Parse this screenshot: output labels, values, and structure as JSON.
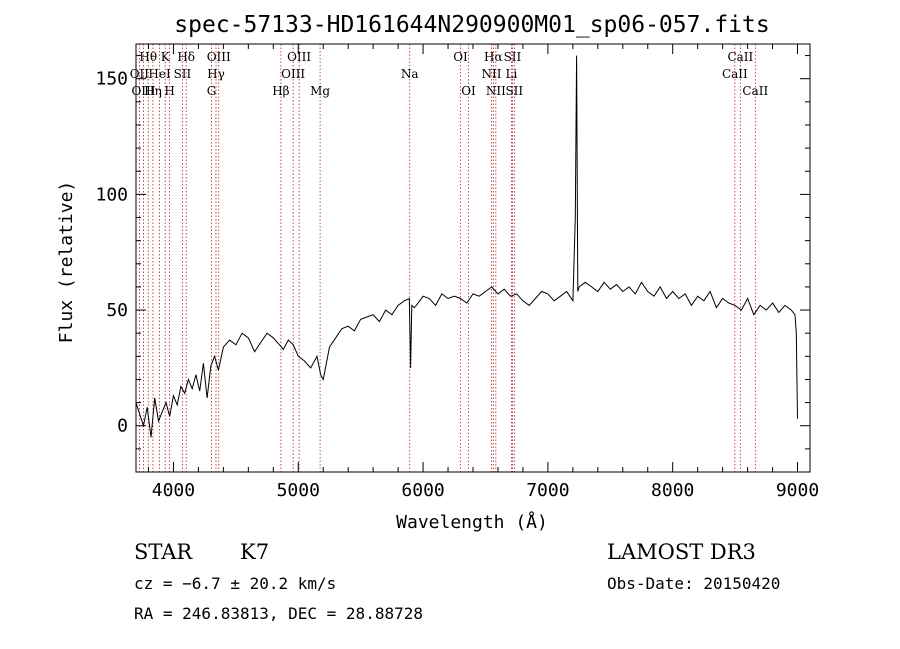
{
  "chart_data": {
    "type": "line",
    "title": "spec-57133-HD161644N290900M01_sp06-057.fits",
    "xlabel": "Wavelength (Å)",
    "ylabel": "Flux (relative)",
    "xlim": [
      3700,
      9100
    ],
    "ylim": [
      -20,
      165
    ],
    "xticks": [
      4000,
      5000,
      6000,
      7000,
      8000,
      9000
    ],
    "yticks": [
      0,
      50,
      100,
      150
    ],
    "grid": false,
    "series": [
      {
        "name": "spectrum",
        "color": "#000000",
        "x": [
          3700,
          3730,
          3760,
          3790,
          3820,
          3850,
          3880,
          3910,
          3940,
          3970,
          4000,
          4030,
          4060,
          4090,
          4120,
          4150,
          4180,
          4210,
          4240,
          4270,
          4300,
          4330,
          4360,
          4400,
          4450,
          4500,
          4550,
          4600,
          4650,
          4700,
          4750,
          4800,
          4850,
          4880,
          4920,
          4960,
          5000,
          5050,
          5100,
          5150,
          5180,
          5200,
          5250,
          5300,
          5350,
          5400,
          5450,
          5500,
          5550,
          5600,
          5650,
          5700,
          5750,
          5800,
          5850,
          5890,
          5900,
          5910,
          5930,
          5960,
          6000,
          6050,
          6100,
          6150,
          6200,
          6250,
          6300,
          6350,
          6400,
          6450,
          6500,
          6550,
          6600,
          6650,
          6700,
          6750,
          6800,
          6850,
          6900,
          6950,
          7000,
          7050,
          7100,
          7150,
          7200,
          7220,
          7230,
          7240,
          7250,
          7300,
          7350,
          7400,
          7450,
          7500,
          7550,
          7600,
          7650,
          7700,
          7750,
          7800,
          7850,
          7900,
          7950,
          8000,
          8050,
          8100,
          8150,
          8200,
          8250,
          8300,
          8350,
          8400,
          8450,
          8500,
          8550,
          8600,
          8650,
          8700,
          8750,
          8800,
          8850,
          8900,
          8950,
          8980,
          8990,
          9000
        ],
        "values": [
          10,
          5,
          0,
          8,
          -5,
          12,
          2,
          6,
          10,
          4,
          13,
          9,
          17,
          14,
          20,
          16,
          22,
          15,
          27,
          12,
          26,
          30,
          24,
          34,
          37,
          35,
          40,
          38,
          32,
          36,
          40,
          38,
          35,
          33,
          37,
          35,
          30,
          28,
          25,
          30,
          22,
          20,
          34,
          38,
          42,
          43,
          41,
          46,
          47,
          48,
          45,
          50,
          48,
          52,
          54,
          55,
          25,
          52,
          51,
          53,
          56,
          55,
          52,
          57,
          55,
          56,
          55,
          53,
          57,
          56,
          58,
          60,
          57,
          59,
          56,
          57,
          54,
          52,
          55,
          58,
          57,
          54,
          56,
          58,
          54,
          90,
          160,
          58,
          60,
          62,
          60,
          58,
          62,
          59,
          61,
          58,
          60,
          57,
          62,
          58,
          56,
          60,
          55,
          58,
          55,
          57,
          52,
          56,
          54,
          58,
          51,
          55,
          53,
          52,
          50,
          55,
          48,
          52,
          50,
          53,
          49,
          52,
          50,
          48,
          40,
          3
        ]
      }
    ],
    "reference_lines": [
      {
        "label": "Hθ",
        "wavelength": 3798,
        "row": 1
      },
      {
        "label": "OII",
        "wavelength": 3727,
        "row": 2
      },
      {
        "label": "OIII",
        "wavelength": 3760,
        "row": 3
      },
      {
        "label": "Hη",
        "wavelength": 3836,
        "row": 3
      },
      {
        "label": "HeI",
        "wavelength": 3889,
        "row": 2
      },
      {
        "label": "K",
        "wavelength": 3934,
        "row": 1
      },
      {
        "label": "H",
        "wavelength": 3969,
        "row": 3
      },
      {
        "label": "SII",
        "wavelength": 4072,
        "row": 2
      },
      {
        "label": "Hδ",
        "wavelength": 4102,
        "row": 1
      },
      {
        "label": "G",
        "wavelength": 4305,
        "row": 3
      },
      {
        "label": "Hγ",
        "wavelength": 4341,
        "row": 2
      },
      {
        "label": "OIII",
        "wavelength": 4363,
        "row": 1
      },
      {
        "label": "Hβ",
        "wavelength": 4861,
        "row": 3
      },
      {
        "label": "OIII",
        "wavelength": 4959,
        "row": 2
      },
      {
        "label": "OIII",
        "wavelength": 5007,
        "row": 1
      },
      {
        "label": "Mg",
        "wavelength": 5175,
        "row": 3
      },
      {
        "label": "Na",
        "wavelength": 5893,
        "row": 2
      },
      {
        "label": "OI",
        "wavelength": 6300,
        "row": 1
      },
      {
        "label": "OI",
        "wavelength": 6364,
        "row": 3
      },
      {
        "label": "NII",
        "wavelength": 6548,
        "row": 2
      },
      {
        "label": "Hα",
        "wavelength": 6563,
        "row": 1
      },
      {
        "label": "NII",
        "wavelength": 6583,
        "row": 3
      },
      {
        "label": "Li",
        "wavelength": 6708,
        "row": 2
      },
      {
        "label": "SII",
        "wavelength": 6716,
        "row": 1
      },
      {
        "label": "SII",
        "wavelength": 6731,
        "row": 3
      },
      {
        "label": "CaII",
        "wavelength": 8498,
        "row": 2
      },
      {
        "label": "CaII",
        "wavelength": 8542,
        "row": 1
      },
      {
        "label": "CaII",
        "wavelength": 8662,
        "row": 3
      }
    ],
    "reference_line_color": "#b22222"
  },
  "info": {
    "object_class": "STAR",
    "subclass": "K7",
    "survey": "LAMOST DR3",
    "velocity": "cz = −6.7 ± 20.2 km/s",
    "obs_date": "Obs-Date: 20150420",
    "coords": "RA = 246.83813, DEC =  28.88728"
  }
}
